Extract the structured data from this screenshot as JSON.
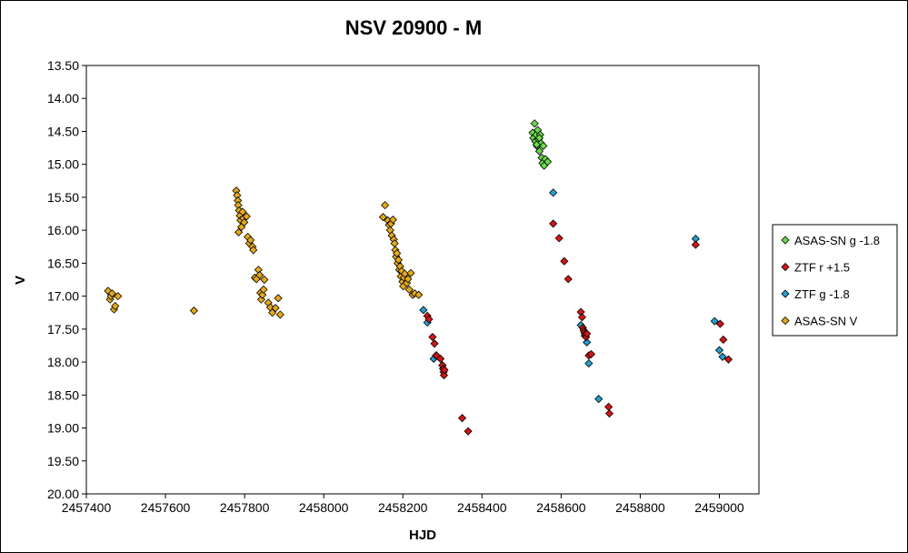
{
  "chart_data": {
    "type": "scatter",
    "title": "NSV 20900 - M",
    "xlabel": "HJD",
    "ylabel": "V",
    "xlim": [
      2457400,
      2459100
    ],
    "ylim": [
      13.5,
      20.0
    ],
    "y_inverted": true,
    "x_ticks": [
      "2457400",
      "2457600",
      "2457800",
      "2458000",
      "2458200",
      "2458400",
      "2458600",
      "2458800",
      "2459000"
    ],
    "y_ticks": [
      "13.50",
      "14.00",
      "14.50",
      "15.00",
      "15.50",
      "16.00",
      "16.50",
      "17.00",
      "17.50",
      "18.00",
      "18.50",
      "19.00",
      "19.50",
      "20.00"
    ],
    "legend_position": "right",
    "series": [
      {
        "name": "ASAS-SN g -1.8",
        "color": "#66dd44",
        "points": [
          [
            2458528,
            14.52
          ],
          [
            2458530,
            14.6
          ],
          [
            2458533,
            14.38
          ],
          [
            2458535,
            14.65
          ],
          [
            2458537,
            14.55
          ],
          [
            2458539,
            14.72
          ],
          [
            2458541,
            14.48
          ],
          [
            2458543,
            14.62
          ],
          [
            2458545,
            14.8
          ],
          [
            2458547,
            14.55
          ],
          [
            2458549,
            14.68
          ],
          [
            2458551,
            14.9
          ],
          [
            2458553,
            14.98
          ],
          [
            2458555,
            14.72
          ],
          [
            2458557,
            15.02
          ],
          [
            2458560,
            14.92
          ],
          [
            2458566,
            14.96
          ],
          [
            2458545,
            14.6
          ],
          [
            2458538,
            14.7
          ]
        ]
      },
      {
        "name": "ZTF r +1.5",
        "color": "#dd1111",
        "points": [
          [
            2458262,
            17.3
          ],
          [
            2458266,
            17.35
          ],
          [
            2458275,
            17.62
          ],
          [
            2458280,
            17.72
          ],
          [
            2458285,
            17.9
          ],
          [
            2458295,
            17.95
          ],
          [
            2458300,
            18.05
          ],
          [
            2458302,
            18.1
          ],
          [
            2458303,
            18.15
          ],
          [
            2458304,
            18.2
          ],
          [
            2458305,
            18.12
          ],
          [
            2458350,
            18.85
          ],
          [
            2458365,
            19.05
          ],
          [
            2458580,
            15.9
          ],
          [
            2458595,
            16.12
          ],
          [
            2458608,
            16.47
          ],
          [
            2458618,
            16.74
          ],
          [
            2458650,
            17.24
          ],
          [
            2458653,
            17.32
          ],
          [
            2458655,
            17.48
          ],
          [
            2458657,
            17.52
          ],
          [
            2458659,
            17.55
          ],
          [
            2458661,
            17.58
          ],
          [
            2458663,
            17.62
          ],
          [
            2458665,
            17.57
          ],
          [
            2458670,
            17.9
          ],
          [
            2458676,
            17.88
          ],
          [
            2458720,
            18.68
          ],
          [
            2458722,
            18.78
          ],
          [
            2458940,
            16.22
          ],
          [
            2459002,
            17.42
          ],
          [
            2459010,
            17.66
          ],
          [
            2459023,
            17.96
          ]
        ]
      },
      {
        "name": "ZTF g -1.8",
        "color": "#1fa0d8",
        "points": [
          [
            2458252,
            17.21
          ],
          [
            2458262,
            17.4
          ],
          [
            2458278,
            17.95
          ],
          [
            2458284,
            17.9
          ],
          [
            2458300,
            18.05
          ],
          [
            2458302,
            18.1
          ],
          [
            2458580,
            15.43
          ],
          [
            2458650,
            17.44
          ],
          [
            2458660,
            17.6
          ],
          [
            2458665,
            17.7
          ],
          [
            2458670,
            18.02
          ],
          [
            2458695,
            18.56
          ],
          [
            2458940,
            16.13
          ],
          [
            2458988,
            17.38
          ],
          [
            2459000,
            17.82
          ],
          [
            2459008,
            17.92
          ]
        ]
      },
      {
        "name": "ASAS-SN V",
        "color": "#e8aa10",
        "points": [
          [
            2457455,
            16.92
          ],
          [
            2457460,
            17.05
          ],
          [
            2457462,
            17.0
          ],
          [
            2457465,
            16.96
          ],
          [
            2457470,
            17.2
          ],
          [
            2457473,
            17.15
          ],
          [
            2457480,
            17.0
          ],
          [
            2457672,
            17.22
          ],
          [
            2457779,
            15.4
          ],
          [
            2457781,
            15.47
          ],
          [
            2457783,
            15.55
          ],
          [
            2457784,
            15.62
          ],
          [
            2457786,
            15.7
          ],
          [
            2457788,
            15.78
          ],
          [
            2457790,
            15.85
          ],
          [
            2457792,
            15.95
          ],
          [
            2457785,
            16.03
          ],
          [
            2457795,
            15.72
          ],
          [
            2457797,
            15.82
          ],
          [
            2457799,
            15.88
          ],
          [
            2457805,
            15.79
          ],
          [
            2457808,
            16.1
          ],
          [
            2457812,
            16.2
          ],
          [
            2457815,
            16.15
          ],
          [
            2457820,
            16.25
          ],
          [
            2457822,
            16.3
          ],
          [
            2457826,
            16.72
          ],
          [
            2457830,
            16.74
          ],
          [
            2457835,
            16.6
          ],
          [
            2457838,
            16.68
          ],
          [
            2457840,
            16.95
          ],
          [
            2457842,
            17.05
          ],
          [
            2457845,
            16.98
          ],
          [
            2457848,
            16.9
          ],
          [
            2457850,
            16.75
          ],
          [
            2457860,
            17.1
          ],
          [
            2457865,
            17.17
          ],
          [
            2457870,
            17.25
          ],
          [
            2457878,
            17.18
          ],
          [
            2457885,
            17.03
          ],
          [
            2457890,
            17.28
          ],
          [
            2458155,
            15.62
          ],
          [
            2458150,
            15.8
          ],
          [
            2458162,
            15.85
          ],
          [
            2458165,
            15.92
          ],
          [
            2458168,
            16.0
          ],
          [
            2458170,
            15.9
          ],
          [
            2458172,
            16.08
          ],
          [
            2458175,
            15.84
          ],
          [
            2458177,
            16.14
          ],
          [
            2458179,
            16.2
          ],
          [
            2458181,
            16.3
          ],
          [
            2458183,
            16.4
          ],
          [
            2458185,
            16.35
          ],
          [
            2458187,
            16.5
          ],
          [
            2458189,
            16.45
          ],
          [
            2458191,
            16.6
          ],
          [
            2458193,
            16.55
          ],
          [
            2458195,
            16.7
          ],
          [
            2458197,
            16.62
          ],
          [
            2458199,
            16.78
          ],
          [
            2458201,
            16.85
          ],
          [
            2458203,
            16.72
          ],
          [
            2458205,
            16.66
          ],
          [
            2458210,
            16.8
          ],
          [
            2458213,
            16.74
          ],
          [
            2458216,
            16.9
          ],
          [
            2458220,
            16.65
          ],
          [
            2458225,
            16.98
          ],
          [
            2458230,
            16.96
          ],
          [
            2458240,
            16.98
          ]
        ]
      }
    ]
  }
}
